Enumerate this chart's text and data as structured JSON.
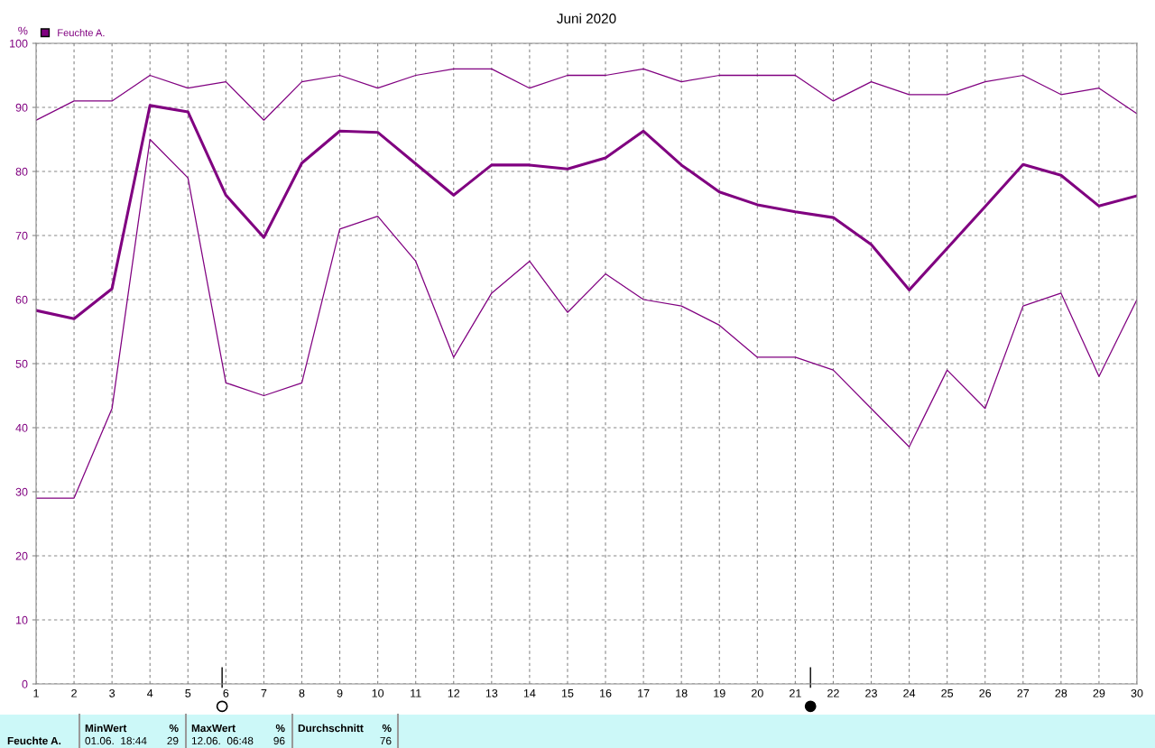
{
  "chart_data": {
    "type": "line",
    "title": "Juni 2020",
    "ylabel": "%",
    "x": [
      1,
      2,
      3,
      4,
      5,
      6,
      7,
      8,
      9,
      10,
      11,
      12,
      13,
      14,
      15,
      16,
      17,
      18,
      19,
      20,
      21,
      22,
      23,
      24,
      25,
      26,
      27,
      28,
      29,
      30
    ],
    "series": [
      {
        "name": "Feuchte A.",
        "color": "#800080",
        "values": [
          58.3,
          57.0,
          61.7,
          90.3,
          89.3,
          76.3,
          69.7,
          81.3,
          86.3,
          86.1,
          81.2,
          76.3,
          81.0,
          81.0,
          80.4,
          82.1,
          86.3,
          81.0,
          76.8,
          74.8,
          73.7,
          72.8,
          68.6,
          61.5,
          68.0,
          74.5,
          81.1,
          79.4,
          74.6,
          76.2
        ]
      },
      {
        "color": "#800080",
        "values": [
          88,
          91,
          91,
          95,
          93,
          94,
          88,
          94,
          95,
          93,
          95,
          96,
          96,
          93,
          95,
          95,
          96,
          94,
          95,
          95,
          95,
          91,
          94,
          92,
          92,
          94,
          95,
          92,
          93,
          89
        ]
      },
      {
        "color": "#800080",
        "values": [
          29,
          29,
          43,
          85,
          79,
          47,
          45,
          47,
          71,
          73,
          66,
          51,
          61,
          66,
          58,
          64,
          60,
          59,
          56,
          51,
          51,
          49,
          43,
          37,
          49,
          43,
          59,
          61,
          48,
          60
        ]
      }
    ],
    "xlim": [
      1,
      30
    ],
    "xticks": [
      1,
      2,
      3,
      4,
      5,
      6,
      7,
      8,
      9,
      10,
      11,
      12,
      13,
      14,
      15,
      16,
      17,
      18,
      19,
      20,
      21,
      22,
      23,
      24,
      25,
      26,
      27,
      28,
      29,
      30
    ],
    "ylim": [
      0,
      100
    ],
    "yticks": [
      0,
      10,
      20,
      30,
      40,
      50,
      60,
      70,
      80,
      90,
      100
    ],
    "grid": true,
    "legend": "top left",
    "annotations": [
      "Feuchte A.",
      "MinWert",
      "%",
      "01.06.  18:44",
      "29",
      "MaxWert",
      "%",
      "12.06.  06:48",
      "96",
      "Durchschnitt",
      "%",
      "76"
    ]
  }
}
